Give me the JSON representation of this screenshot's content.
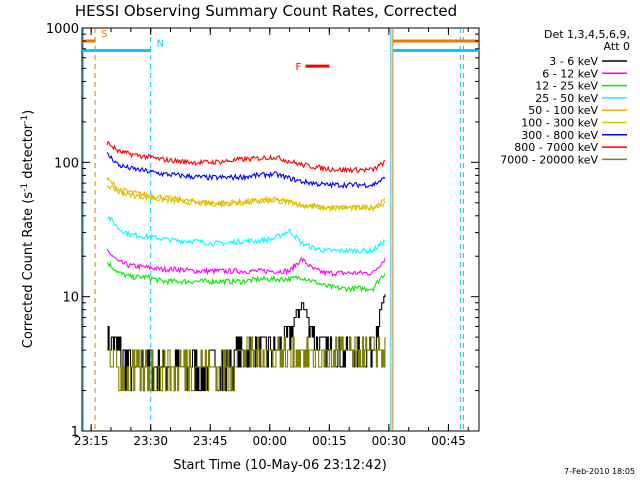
{
  "chart_data": {
    "type": "line",
    "title": "HESSI Observing Summary Count Rates, Corrected",
    "xlabel": "Start Time (10-May-06 23:12:42)",
    "ylabel": "Corrected Count Rate (s⁻¹ detector⁻¹)",
    "ylabel_main": "Corrected Count Rate (s",
    "ylabel_sup1": "-1",
    "ylabel_mid": " detector",
    "ylabel_sup2": "-1",
    "ylabel_end": ")",
    "yscale": "log",
    "ylim": [
      1,
      1000
    ],
    "xlim": [
      "23:12:42",
      "00:52:42"
    ],
    "x_ticks": [
      "23:15",
      "23:30",
      "23:45",
      "00:00",
      "00:15",
      "00:30",
      "00:45"
    ],
    "y_ticks": [
      "1",
      "10",
      "100",
      "1000"
    ],
    "legend_title": "Det 1,3,4,5,6,9,",
    "legend_subtitle": "Att 0",
    "legend_position": "right",
    "footer": "7-Feb-2010 18:05",
    "series": [
      {
        "name": "3 - 6 keV",
        "color": "#000000",
        "x": [
          "23:19",
          "23:22",
          "23:25",
          "23:29",
          "23:33",
          "23:37",
          "23:41",
          "23:45",
          "23:49",
          "23:53",
          "23:57",
          "00:01",
          "00:05",
          "00:08",
          "00:11",
          "00:14",
          "00:18",
          "00:22",
          "00:26",
          "00:29"
        ],
        "y": [
          5,
          4,
          3,
          3,
          3,
          3,
          3,
          3,
          3,
          4,
          4,
          4,
          5,
          9,
          5,
          4,
          4,
          4,
          4,
          10
        ]
      },
      {
        "name": "6 - 12 keV",
        "color": "#ff00ff",
        "x": [
          "23:19",
          "23:22",
          "23:25",
          "23:29",
          "23:33",
          "23:37",
          "23:41",
          "23:45",
          "23:49",
          "23:53",
          "23:57",
          "00:01",
          "00:05",
          "00:08",
          "00:11",
          "00:14",
          "00:18",
          "00:22",
          "00:26",
          "00:29"
        ],
        "y": [
          22,
          18,
          17,
          16.5,
          16,
          16,
          15.5,
          15.5,
          15.5,
          15.5,
          15.5,
          15.5,
          15.5,
          19,
          16,
          15,
          15,
          15,
          15,
          19
        ]
      },
      {
        "name": "12 - 25 keV",
        "color": "#00ee00",
        "x": [
          "23:19",
          "23:22",
          "23:25",
          "23:29",
          "23:33",
          "23:37",
          "23:41",
          "23:45",
          "23:49",
          "23:53",
          "23:57",
          "00:01",
          "00:05",
          "00:08",
          "00:11",
          "00:14",
          "00:18",
          "00:22",
          "00:26",
          "00:29"
        ],
        "y": [
          18,
          15,
          14,
          14,
          13,
          13,
          13,
          13,
          13,
          13,
          13.5,
          13.5,
          13.5,
          14,
          13,
          12,
          11.5,
          11.5,
          11.5,
          15
        ]
      },
      {
        "name": "25 - 50 keV",
        "color": "#00ffff",
        "x": [
          "23:19",
          "23:22",
          "23:25",
          "23:29",
          "23:33",
          "23:37",
          "23:41",
          "23:45",
          "23:49",
          "23:53",
          "23:57",
          "00:01",
          "00:05",
          "00:08",
          "00:11",
          "00:14",
          "00:18",
          "00:22",
          "00:26",
          "00:29"
        ],
        "y": [
          40,
          32,
          29,
          28,
          27,
          26,
          26,
          25,
          25,
          26,
          26,
          27,
          31,
          25,
          23,
          22,
          22,
          22,
          22,
          26
        ]
      },
      {
        "name": "50 - 100 keV",
        "color": "#ffaa00",
        "x": [
          "23:19",
          "23:22",
          "23:25",
          "23:29",
          "23:33",
          "23:37",
          "23:41",
          "23:45",
          "23:49",
          "23:53",
          "23:57",
          "00:01",
          "00:05",
          "00:08",
          "00:11",
          "00:14",
          "00:18",
          "00:22",
          "00:26",
          "00:29"
        ],
        "y": [
          75,
          63,
          60,
          57,
          55,
          53,
          51,
          50,
          50,
          51,
          52,
          53,
          51,
          48,
          47,
          46,
          46,
          46,
          46,
          52
        ]
      },
      {
        "name": "100 - 300 keV",
        "color": "#cccc00",
        "x": [
          "23:19",
          "23:22",
          "23:25",
          "23:29",
          "23:33",
          "23:37",
          "23:41",
          "23:45",
          "23:49",
          "23:53",
          "23:57",
          "00:01",
          "00:05",
          "00:08",
          "00:11",
          "00:14",
          "00:18",
          "00:22",
          "00:26",
          "00:29"
        ],
        "y": [
          68,
          60,
          57,
          55,
          53,
          51,
          50,
          49,
          49,
          50,
          51,
          52,
          50,
          48,
          47,
          46,
          46,
          46,
          46,
          50
        ]
      },
      {
        "name": "300 - 800 keV",
        "color": "#0000ff",
        "x": [
          "23:19",
          "23:22",
          "23:25",
          "23:29",
          "23:33",
          "23:37",
          "23:41",
          "23:45",
          "23:49",
          "23:53",
          "23:57",
          "00:01",
          "00:05",
          "00:08",
          "00:11",
          "00:14",
          "00:18",
          "00:22",
          "00:26",
          "00:29"
        ],
        "y": [
          115,
          95,
          90,
          86,
          82,
          80,
          78,
          77,
          77,
          78,
          80,
          82,
          76,
          72,
          70,
          68,
          68,
          68,
          68,
          76
        ]
      },
      {
        "name": "800 - 7000 keV",
        "color": "#ff0000",
        "x": [
          "23:19",
          "23:22",
          "23:25",
          "23:29",
          "23:33",
          "23:37",
          "23:41",
          "23:45",
          "23:49",
          "23:53",
          "23:57",
          "00:01",
          "00:05",
          "00:08",
          "00:11",
          "00:14",
          "00:18",
          "00:22",
          "00:26",
          "00:29"
        ],
        "y": [
          140,
          120,
          115,
          110,
          105,
          102,
          100,
          100,
          102,
          105,
          107,
          110,
          102,
          96,
          93,
          90,
          88,
          88,
          88,
          100
        ]
      },
      {
        "name": "7000 - 20000 keV",
        "color": "#808000",
        "x": [
          "23:19",
          "23:22",
          "23:25",
          "23:29",
          "23:33",
          "23:37",
          "23:41",
          "23:45",
          "23:49",
          "23:53",
          "23:57",
          "00:01",
          "00:05",
          "00:08",
          "00:11",
          "00:14",
          "00:18",
          "00:22",
          "00:26",
          "00:29"
        ],
        "y": [
          4,
          3,
          2.5,
          3,
          3,
          3,
          3,
          3,
          3,
          3.5,
          4,
          4,
          3.5,
          4,
          3.5,
          3.5,
          4,
          3.5,
          4,
          4
        ]
      }
    ],
    "annotations": [
      {
        "label": "S",
        "color": "#ee7700",
        "text_color": "#ee7700",
        "bar": [
          "23:12:42",
          "23:16"
        ],
        "bar_y": 800,
        "marker_x": "23:16",
        "marker_style": "dashed"
      },
      {
        "label": "N",
        "color": "#00ccff",
        "text_color": "#00ccff",
        "bar": [
          "23:12:42",
          "23:30"
        ],
        "bar_y": 680,
        "marker_x": "23:30",
        "marker_style": "dashed"
      },
      {
        "label": "F",
        "color": "#ff0000",
        "text_color": "#ff0000",
        "bar": [
          "00:09",
          "00:15"
        ],
        "bar_y": 520
      }
    ],
    "right_bars": [
      {
        "color": "#ee7700",
        "bar": [
          "00:31",
          "00:52:42"
        ],
        "bar_y": 800
      },
      {
        "color": "#00ccff",
        "bar": [
          "00:31",
          "00:52:42"
        ],
        "bar_y": 680
      }
    ],
    "vertical_markers": [
      {
        "x": "23:13",
        "color": "#00ccff",
        "style": "solid"
      },
      {
        "x": "00:30:30",
        "color": "#00ccff",
        "style": "solid"
      },
      {
        "x": "00:30:30",
        "color": "#ee7700",
        "style": "solid"
      },
      {
        "x": "00:48",
        "color": "#00ccff",
        "style": "dashed"
      },
      {
        "x": "00:48",
        "color": "#ee7700",
        "style": "dashed"
      }
    ]
  }
}
